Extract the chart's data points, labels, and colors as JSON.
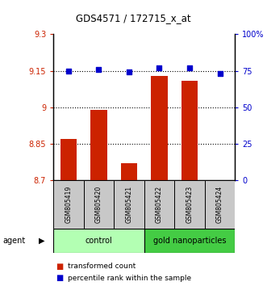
{
  "title": "GDS4571 / 172715_x_at",
  "samples": [
    "GSM805419",
    "GSM805420",
    "GSM805421",
    "GSM805422",
    "GSM805423",
    "GSM805424"
  ],
  "bar_values": [
    8.87,
    8.99,
    8.77,
    9.13,
    9.11,
    8.7
  ],
  "percentile_values": [
    75,
    76,
    74,
    77,
    77,
    73
  ],
  "bar_color": "#cc2200",
  "dot_color": "#0000cc",
  "ylim_left": [
    8.7,
    9.3
  ],
  "ylim_right": [
    0,
    100
  ],
  "yticks_left": [
    8.7,
    8.85,
    9.0,
    9.15,
    9.3
  ],
  "ytick_labels_left": [
    "8.7",
    "8.85",
    "9",
    "9.15",
    "9.3"
  ],
  "yticks_right": [
    0,
    25,
    50,
    75,
    100
  ],
  "ytick_labels_right": [
    "0",
    "25",
    "50",
    "75",
    "100%"
  ],
  "hlines": [
    8.85,
    9.0,
    9.15
  ],
  "groups": [
    {
      "label": "control",
      "indices": [
        0,
        1,
        2
      ],
      "color": "#b3ffb3"
    },
    {
      "label": "gold nanoparticles",
      "indices": [
        3,
        4,
        5
      ],
      "color": "#44cc44"
    }
  ],
  "agent_label": "agent",
  "legend_bar_label": "transformed count",
  "legend_dot_label": "percentile rank within the sample",
  "sample_box_color": "#c8c8c8",
  "bar_width": 0.55
}
